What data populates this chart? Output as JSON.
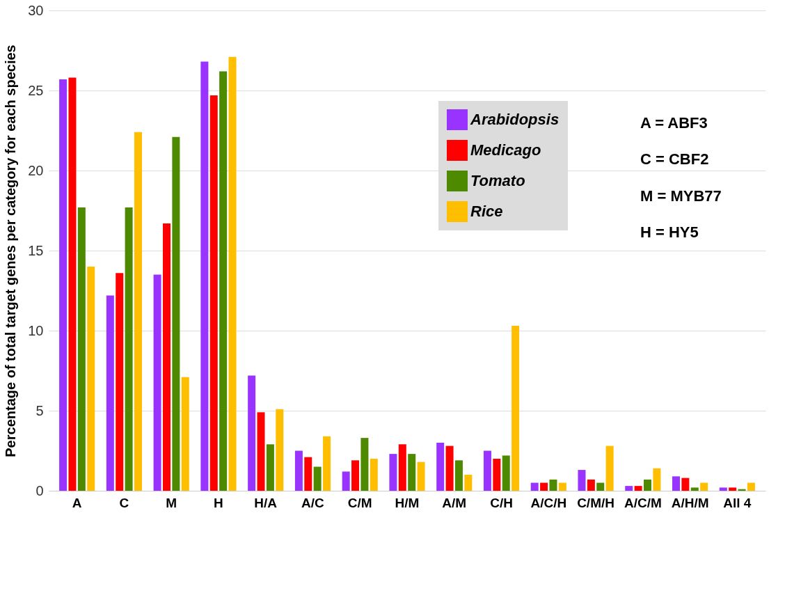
{
  "chart_data": {
    "type": "bar",
    "ylabel": "Percentage of total target genes per category for each species",
    "categories": [
      "A",
      "C",
      "M",
      "H",
      "H/A",
      "A/C",
      "C/M",
      "H/M",
      "A/M",
      "C/H",
      "A/C/H",
      "C/M/H",
      "A/C/M",
      "A/H/M",
      "All 4"
    ],
    "series": [
      {
        "name": "Arabidopsis",
        "color": "#9933ff",
        "values": [
          25.7,
          12.2,
          13.5,
          26.8,
          7.2,
          2.5,
          1.2,
          2.3,
          3.0,
          2.5,
          0.5,
          1.3,
          0.3,
          0.9,
          0.2
        ]
      },
      {
        "name": "Medicago",
        "color": "#ff0000",
        "values": [
          25.8,
          13.6,
          16.7,
          24.7,
          4.9,
          2.1,
          1.9,
          2.9,
          2.8,
          2.0,
          0.5,
          0.7,
          0.3,
          0.8,
          0.2
        ]
      },
      {
        "name": "Tomato",
        "color": "#4e8a00",
        "values": [
          17.7,
          17.7,
          22.1,
          26.2,
          2.9,
          1.5,
          3.3,
          2.3,
          1.9,
          2.2,
          0.7,
          0.5,
          0.7,
          0.2,
          0.1
        ]
      },
      {
        "name": "Rice",
        "color": "#ffbf00",
        "values": [
          14.0,
          22.4,
          7.1,
          27.1,
          5.1,
          3.4,
          2.0,
          1.8,
          1.0,
          10.3,
          0.5,
          2.8,
          1.4,
          0.5,
          0.5
        ]
      }
    ],
    "ylim": [
      0,
      30
    ],
    "yticks": [
      0,
      5,
      10,
      15,
      20,
      25,
      30
    ],
    "grid": "y",
    "legend": "top right",
    "annotations": [
      "A = ABF3",
      "C = CBF2",
      "M = MYB77",
      "H = HY5"
    ]
  }
}
